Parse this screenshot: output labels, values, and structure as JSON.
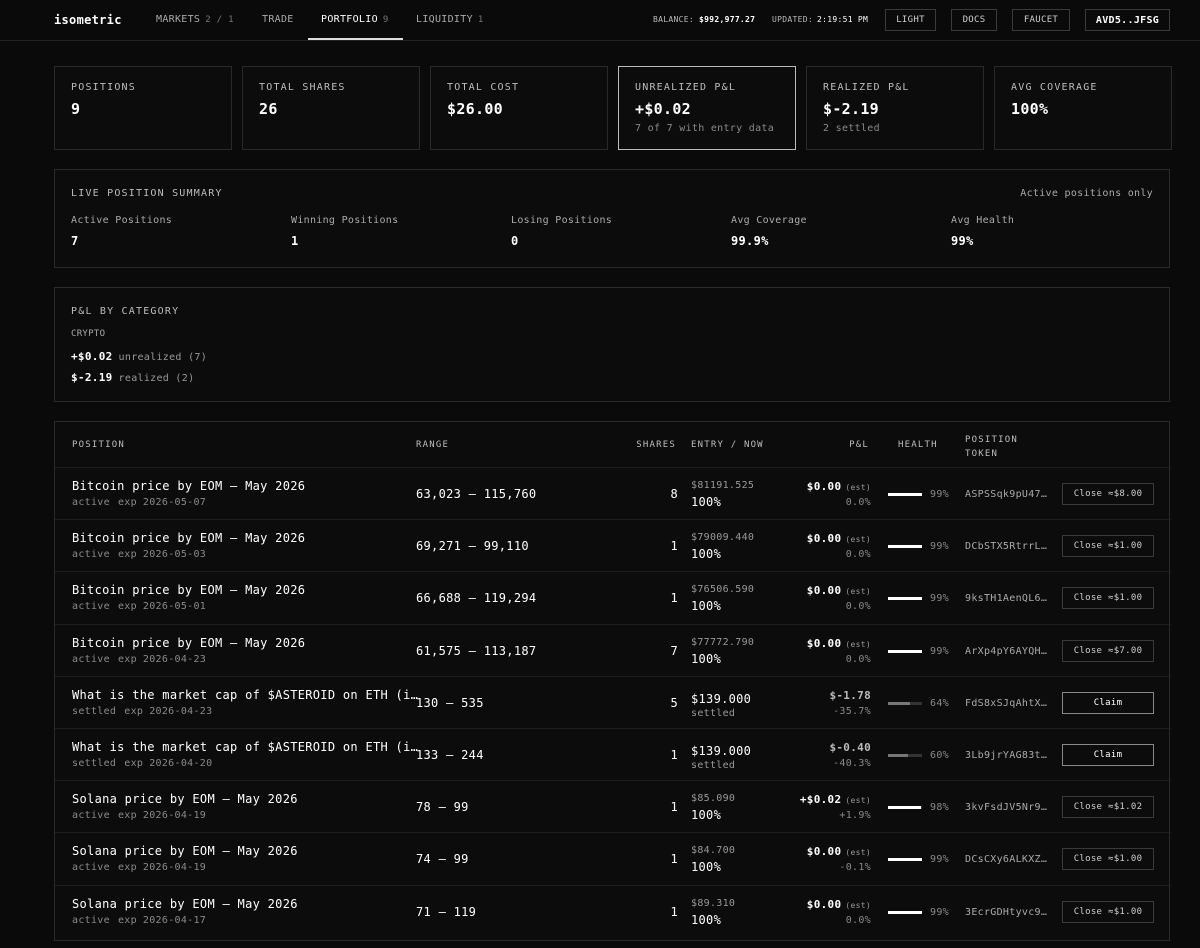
{
  "nav": {
    "brand": "isometric",
    "tabs": [
      {
        "label": "MARKETS",
        "count": "2 / 1"
      },
      {
        "label": "TRADE"
      },
      {
        "label": "PORTFOLIO",
        "count": "9"
      },
      {
        "label": "LIQUIDITY",
        "count": "1"
      }
    ],
    "balance_label": "BALANCE:",
    "balance": "$992,977.27",
    "updated_label": "UPDATED:",
    "updated": "2:19:51 PM",
    "buttons": [
      "LIGHT",
      "DOCS",
      "FAUCET",
      "AVD5..JFSG"
    ]
  },
  "stats": [
    {
      "label": "POSITIONS",
      "value": "9"
    },
    {
      "label": "TOTAL SHARES",
      "value": "26"
    },
    {
      "label": "TOTAL COST",
      "value": "$26.00"
    },
    {
      "label": "UNREALIZED P&L",
      "value": "+$0.02",
      "note": "7 of 7 with entry data"
    },
    {
      "label": "REALIZED P&L",
      "value": "$-2.19",
      "note": "2 settled"
    },
    {
      "label": "AVG COVERAGE",
      "value": "100%"
    }
  ],
  "summary": {
    "title": "LIVE POSITION SUMMARY",
    "note": "Active positions only",
    "items": [
      {
        "label": "Active Positions",
        "value": "7"
      },
      {
        "label": "Winning Positions",
        "value": "1"
      },
      {
        "label": "Losing Positions",
        "value": "0"
      },
      {
        "label": "Avg Coverage",
        "value": "99.9%"
      },
      {
        "label": "Avg Health",
        "value": "99%"
      }
    ]
  },
  "category": {
    "title": "P&L BY CATEGORY",
    "name": "CRYPTO",
    "lines": [
      {
        "value": "+$0.02",
        "label": "unrealized (7)"
      },
      {
        "value": "$-2.19",
        "label": "realized (2)"
      }
    ]
  },
  "table": {
    "headers": [
      "POSITION",
      "RANGE",
      "SHARES",
      "ENTRY / NOW",
      "P&L",
      "HEALTH",
      "POSITION TOKEN"
    ],
    "exp_label": "exp",
    "rows": [
      {
        "title": "Bitcoin price by EOM — May 2026",
        "status": "active",
        "exp": "2026-05-07",
        "range": "63,023 – 115,760",
        "shares": "8",
        "entry": "$81191.525",
        "now": "100%",
        "pnl": "$0.00",
        "pnl_tag": "(est)",
        "pnl_pct": "0.0%",
        "health": "99%",
        "token": "ASPSSqk9pU47…",
        "action": "Close ≈$8.00"
      },
      {
        "title": "Bitcoin price by EOM — May 2026",
        "status": "active",
        "exp": "2026-05-03",
        "range": "69,271 – 99,110",
        "shares": "1",
        "entry": "$79009.440",
        "now": "100%",
        "pnl": "$0.00",
        "pnl_tag": "(est)",
        "pnl_pct": "0.0%",
        "health": "99%",
        "token": "DCbSTX5RtrrL…",
        "action": "Close ≈$1.00"
      },
      {
        "title": "Bitcoin price by EOM — May 2026",
        "status": "active",
        "exp": "2026-05-01",
        "range": "66,688 – 119,294",
        "shares": "1",
        "entry": "$76506.590",
        "now": "100%",
        "pnl": "$0.00",
        "pnl_tag": "(est)",
        "pnl_pct": "0.0%",
        "health": "99%",
        "token": "9ksTH1AenQL6…",
        "action": "Close ≈$1.00"
      },
      {
        "title": "Bitcoin price by EOM — May 2026",
        "status": "active",
        "exp": "2026-04-23",
        "range": "61,575 – 113,187",
        "shares": "7",
        "entry": "$77772.790",
        "now": "100%",
        "pnl": "$0.00",
        "pnl_tag": "(est)",
        "pnl_pct": "0.0%",
        "health": "99%",
        "token": "ArXp4pY6AYQH…",
        "action": "Close ≈$7.00"
      },
      {
        "title": "What is the market cap of $ASTEROID on ETH (i…",
        "status": "settled",
        "exp": "2026-04-23",
        "range": "130 – 535",
        "shares": "5",
        "entry": "$139.000",
        "now": "settled",
        "pnl": "$-1.78",
        "pnl_pct": "-35.7%",
        "health": "64%",
        "token": "FdS8xSJqAhtX…",
        "action": "Claim"
      },
      {
        "title": "What is the market cap of $ASTEROID on ETH (i…",
        "status": "settled",
        "exp": "2026-04-20",
        "range": "133 – 244",
        "shares": "1",
        "entry": "$139.000",
        "now": "settled",
        "pnl": "$-0.40",
        "pnl_pct": "-40.3%",
        "health": "60%",
        "token": "3Lb9jrYAG83t…",
        "action": "Claim"
      },
      {
        "title": "Solana price by EOM — May 2026",
        "status": "active",
        "exp": "2026-04-19",
        "range": "78 – 99",
        "shares": "1",
        "entry": "$85.090",
        "now": "100%",
        "pnl": "+$0.02",
        "pnl_tag": "(est)",
        "pnl_pct": "+1.9%",
        "health": "98%",
        "token": "3kvFsdJV5Nr9…",
        "action": "Close ≈$1.02"
      },
      {
        "title": "Solana price by EOM — May 2026",
        "status": "active",
        "exp": "2026-04-19",
        "range": "74 – 99",
        "shares": "1",
        "entry": "$84.700",
        "now": "100%",
        "pnl": "$0.00",
        "pnl_tag": "(est)",
        "pnl_pct": "-0.1%",
        "health": "99%",
        "token": "DCsCXy6ALKXZ…",
        "action": "Close ≈$1.00"
      },
      {
        "title": "Solana price by EOM — May 2026",
        "status": "active",
        "exp": "2026-04-17",
        "range": "71 – 119",
        "shares": "1",
        "entry": "$89.310",
        "now": "100%",
        "pnl": "$0.00",
        "pnl_tag": "(est)",
        "pnl_pct": "0.0%",
        "health": "99%",
        "token": "3EcrGDHtyvc9…",
        "action": "Close ≈$1.00"
      }
    ]
  }
}
